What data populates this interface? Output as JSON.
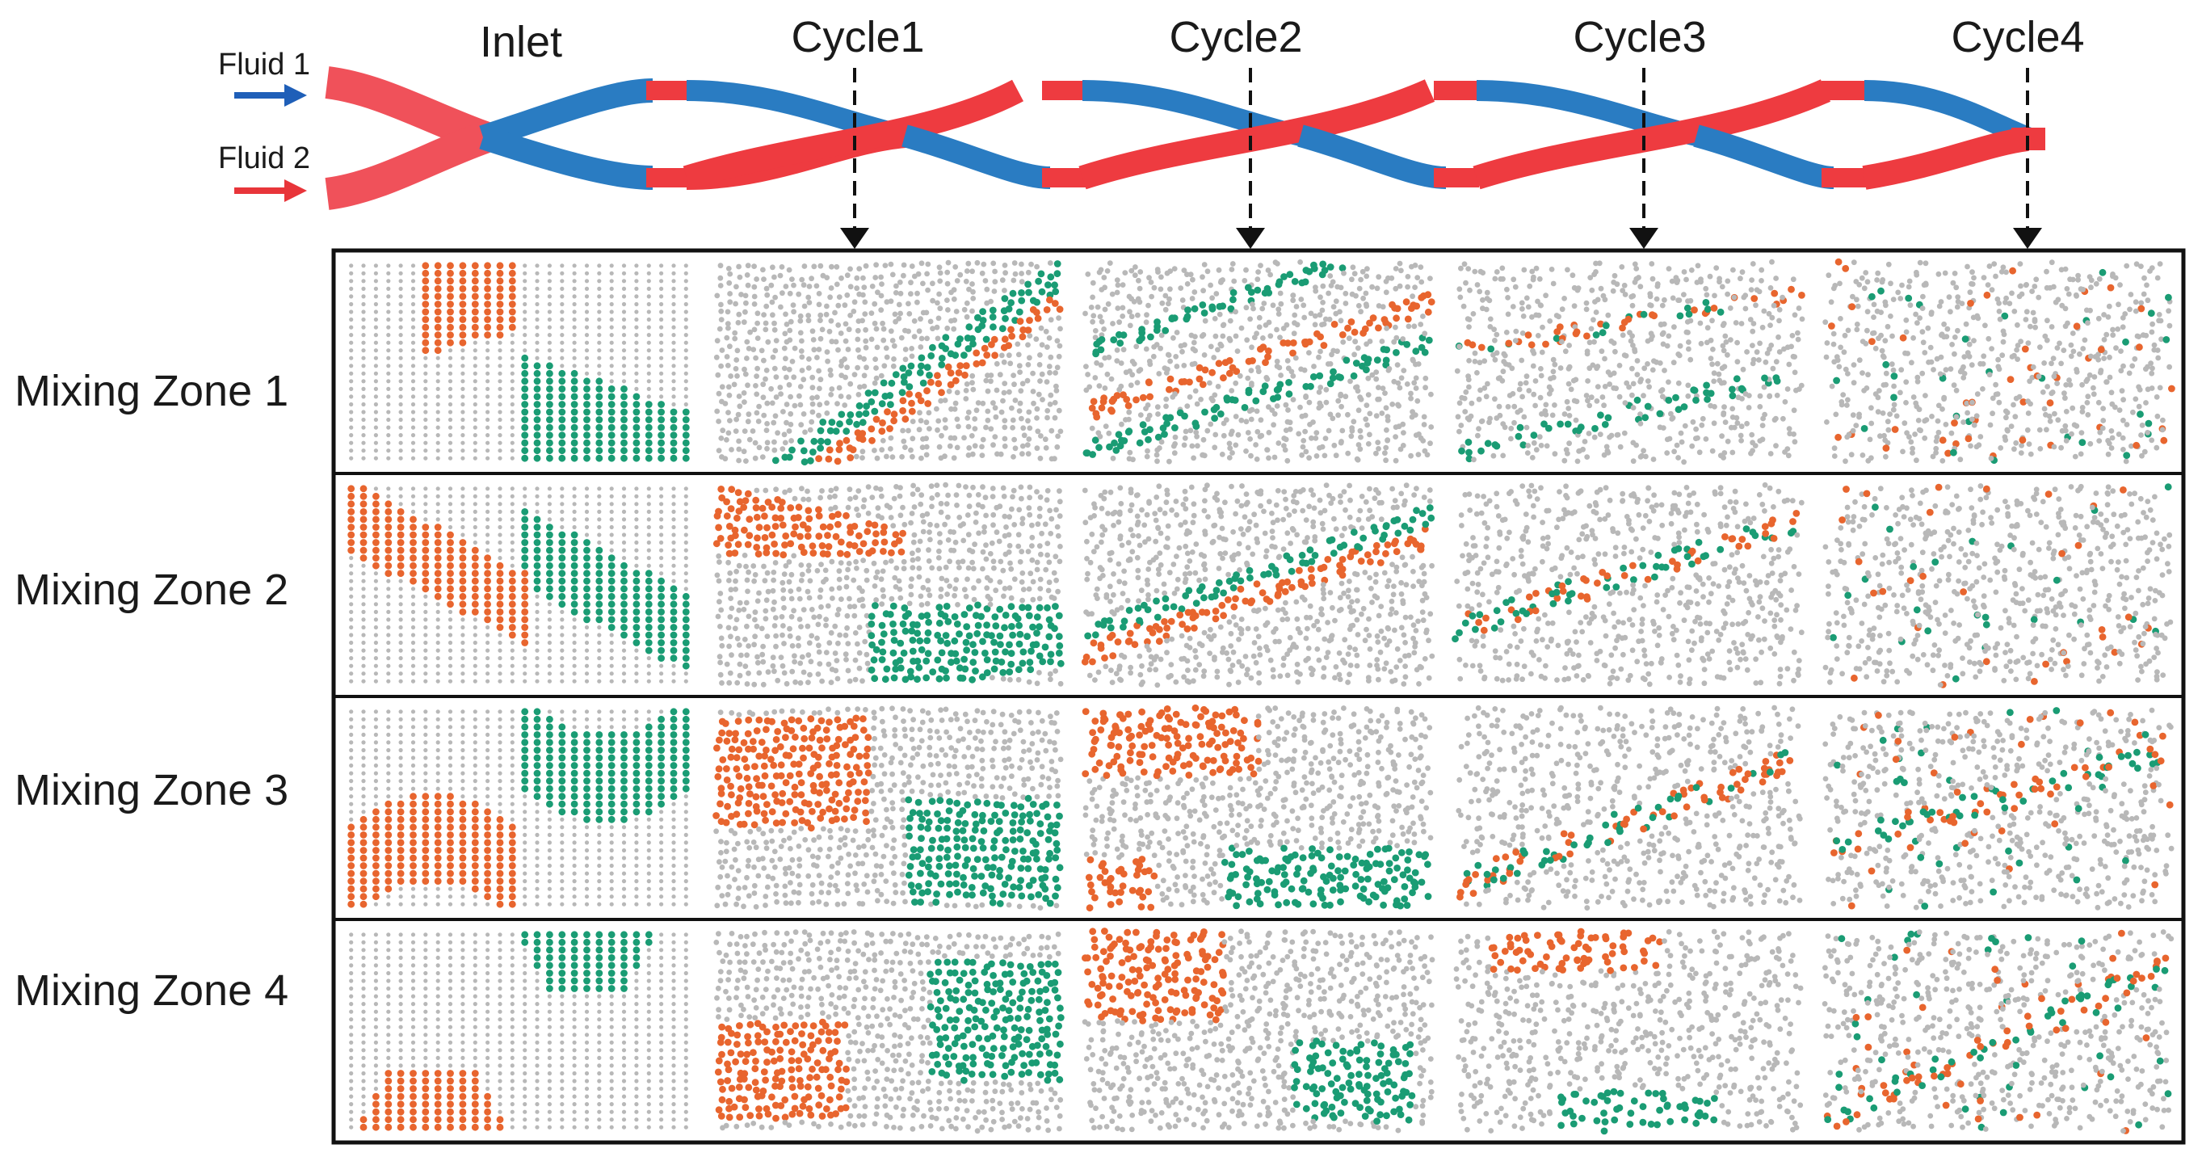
{
  "header": {
    "inlet_label": "Inlet",
    "cycles": [
      "Cycle1",
      "Cycle2",
      "Cycle3",
      "Cycle4"
    ]
  },
  "inputs": {
    "fluid1": {
      "label": "Fluid 1",
      "color": "#1f5fb8"
    },
    "fluid2": {
      "label": "Fluid 2",
      "color": "#e8353a"
    }
  },
  "channel_colors": {
    "fluid1_channel": "#2a7cc2",
    "fluid2_channel": "#ee3b40",
    "inlet_channel": "#f0515a"
  },
  "grid": {
    "row_labels": [
      "Mixing Zone 1",
      "Mixing Zone 2",
      "Mixing Zone 3",
      "Mixing Zone 4"
    ],
    "column_labels": [
      "Inlet",
      "Cycle1",
      "Cycle2",
      "Cycle3",
      "Cycle4"
    ]
  },
  "particle_colors": {
    "fluid1_particles": "#e8652e",
    "fluid2_particles": "#1a9c74",
    "unlabeled_particles": "#b8b8b8"
  }
}
